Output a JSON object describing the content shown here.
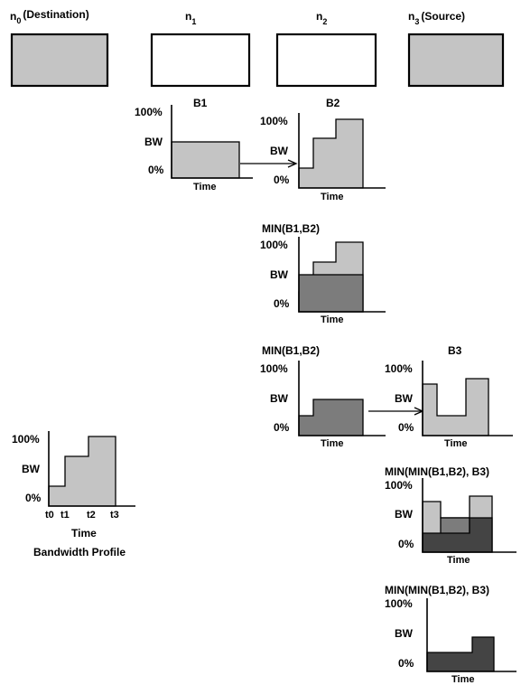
{
  "nodes": [
    {
      "name": "n",
      "sub": "0",
      "suffix": "(Destination)"
    },
    {
      "name": "n",
      "sub": "1",
      "suffix": ""
    },
    {
      "name": "n",
      "sub": "2",
      "suffix": ""
    },
    {
      "name": "n",
      "sub": "3",
      "suffix": "(Source)"
    }
  ],
  "charts": {
    "b1": {
      "title": "B1"
    },
    "b2": {
      "title": "B2"
    },
    "min12a": {
      "title": "MIN(B1,B2)"
    },
    "min12b": {
      "title": "MIN(B1,B2)"
    },
    "b3": {
      "title": "B3"
    },
    "min123a": {
      "title": "MIN(MIN(B1,B2), B3)"
    },
    "min123b": {
      "title": "MIN(MIN(B1,B2), B3)"
    },
    "profile": {
      "title": "Bandwidth Profile",
      "ticks": [
        "t0",
        "t1",
        "t2",
        "t3"
      ]
    }
  },
  "axis": {
    "top": "100%",
    "mid": "BW",
    "bottom": "0%",
    "x": "Time"
  },
  "colors": {
    "light": "#c4c4c4",
    "mid": "#7c7c7c",
    "dark": "#444444"
  }
}
